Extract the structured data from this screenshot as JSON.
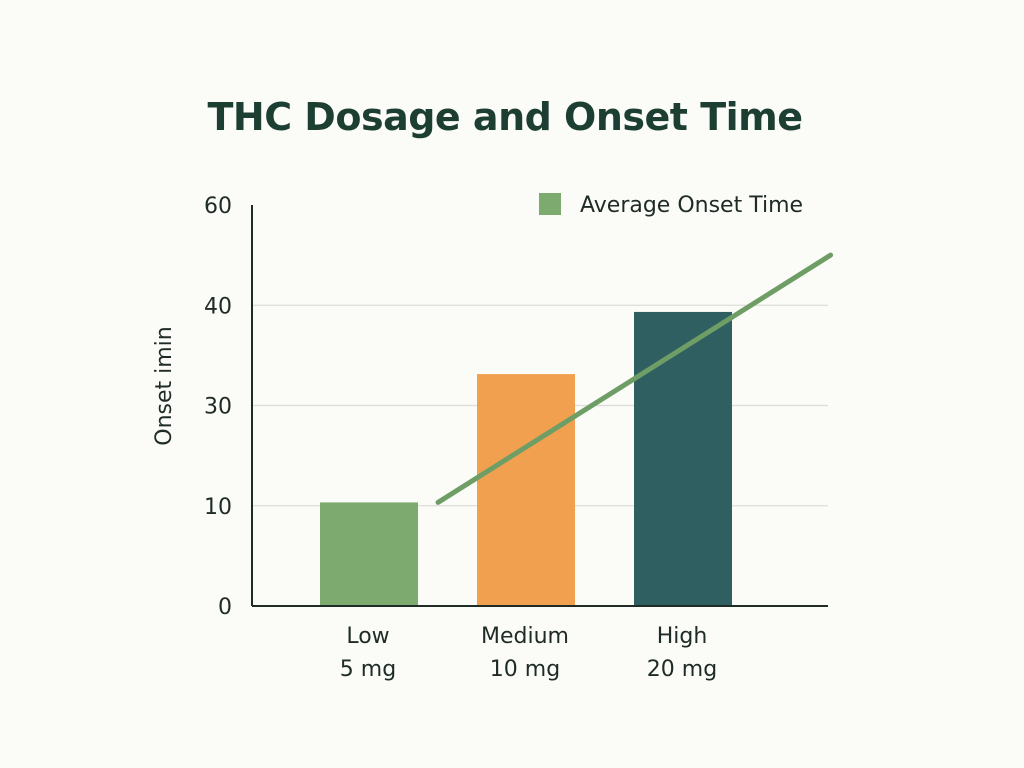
{
  "chart_data": {
    "type": "bar",
    "title": "THC Dosage and Onset Time",
    "ylabel": "Onset imin",
    "xlabel": "",
    "ylim": [
      0,
      60
    ],
    "yticks": [
      "0",
      "10",
      "30",
      "40",
      "60"
    ],
    "categories": [
      {
        "name": "Low",
        "dose": "5 mg"
      },
      {
        "name": "Medium",
        "dose": "10 mg"
      },
      {
        "name": "High",
        "dose": "20 mg"
      }
    ],
    "values": [
      15.5,
      34.7,
      44
    ],
    "bar_colors": [
      "#7daa6e",
      "#f1a04f",
      "#2f5f60"
    ],
    "line": {
      "name": "Average Onset Time",
      "color": "#6e9e66",
      "points": [
        {
          "x": 0.44,
          "y": 15.5
        },
        {
          "x": 2.94,
          "y": 52.5
        }
      ]
    },
    "legend_position": "top-right",
    "grid": true
  }
}
